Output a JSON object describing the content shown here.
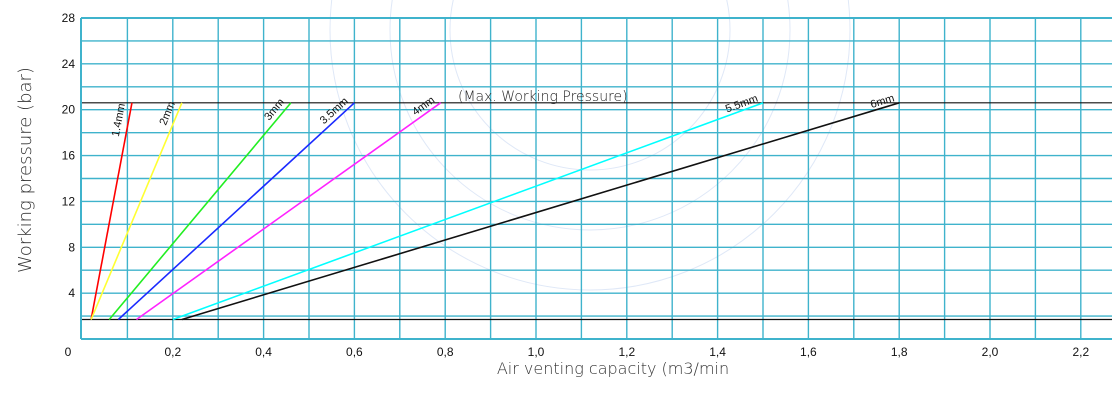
{
  "chart_data": {
    "type": "line",
    "title": "",
    "xlabel": "Air venting capacity (m3/min",
    "ylabel": "Working pressure (bar)",
    "xlim": [
      0,
      2.3
    ],
    "ylim": [
      0,
      28
    ],
    "x_ticks": [
      "0",
      "0,2",
      "0,4",
      "0,6",
      "0,8",
      "1,0",
      "1,2",
      "1,4",
      "1,6",
      "1,8",
      "2,0",
      "2,2"
    ],
    "y_ticks": [
      "0",
      "4",
      "8",
      "12",
      "16",
      "20",
      "24",
      "28"
    ],
    "grid": true,
    "grid_color": "#3fb3cc",
    "annotation": "(Max. Working Pressure)",
    "reference_lines": [
      {
        "y": 20.6
      },
      {
        "y": 1.7
      }
    ],
    "series": [
      {
        "name": "1.4mm",
        "color": "#ff0000",
        "points": [
          [
            0.02,
            1.7
          ],
          [
            0.11,
            20.6
          ]
        ]
      },
      {
        "name": "2mm",
        "color": "#ffff33",
        "points": [
          [
            0.02,
            1.7
          ],
          [
            0.22,
            20.6
          ]
        ]
      },
      {
        "name": "3mm",
        "color": "#22ee22",
        "points": [
          [
            0.06,
            1.7
          ],
          [
            0.46,
            20.6
          ]
        ]
      },
      {
        "name": "3.5mm",
        "color": "#1a2aff",
        "points": [
          [
            0.08,
            1.7
          ],
          [
            0.6,
            20.6
          ]
        ]
      },
      {
        "name": "4mm",
        "color": "#ff22ff",
        "points": [
          [
            0.12,
            1.7
          ],
          [
            0.79,
            20.6
          ]
        ]
      },
      {
        "name": "5.5mm",
        "color": "#00ffff",
        "points": [
          [
            0.2,
            1.7
          ],
          [
            1.5,
            20.6
          ]
        ]
      },
      {
        "name": "6mm",
        "color": "#111111",
        "points": [
          [
            0.22,
            1.7
          ],
          [
            1.8,
            20.6
          ]
        ]
      }
    ]
  }
}
